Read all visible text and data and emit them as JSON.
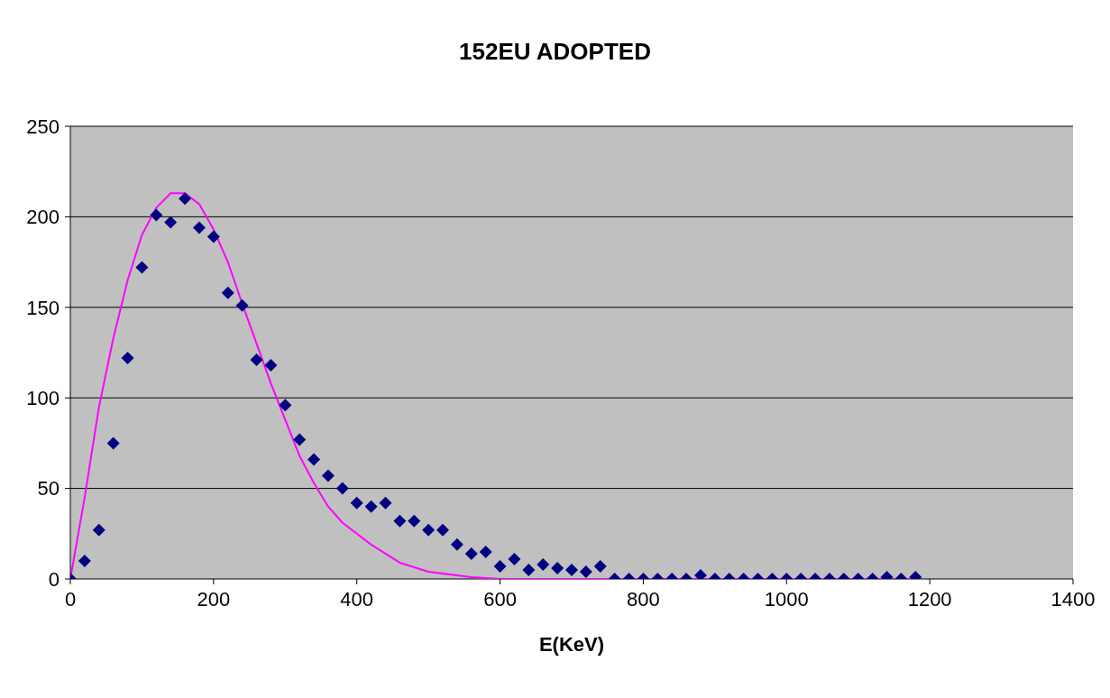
{
  "chart_data": {
    "type": "scatter",
    "title": "152EU ADOPTED",
    "xlabel": "E(KeV)",
    "xlim": [
      0,
      1400
    ],
    "xticks": [
      0,
      200,
      400,
      600,
      800,
      1000,
      1200,
      1400
    ],
    "ylim": [
      0,
      250
    ],
    "yticks": [
      0,
      50,
      100,
      150,
      200,
      250
    ],
    "grid": "y",
    "legend": false,
    "series": [
      {
        "marker": "diamond",
        "color": "#000080",
        "x": [
          0,
          20,
          40,
          60,
          80,
          100,
          120,
          140,
          160,
          180,
          200,
          220,
          240,
          260,
          280,
          300,
          320,
          340,
          360,
          380,
          400,
          420,
          440,
          460,
          480,
          500,
          520,
          540,
          560,
          580,
          600,
          620,
          640,
          660,
          680,
          700,
          720,
          740,
          760,
          780,
          800,
          820,
          840,
          860,
          880,
          900,
          920,
          940,
          960,
          980,
          1000,
          1020,
          1040,
          1060,
          1080,
          1100,
          1120,
          1140,
          1160,
          1180
        ],
        "values": [
          0,
          10,
          27,
          75,
          122,
          172,
          201,
          197,
          210,
          194,
          189,
          158,
          151,
          121,
          118,
          96,
          77,
          66,
          57,
          50,
          42,
          40,
          42,
          32,
          32,
          27,
          27,
          19,
          14,
          15,
          7,
          11,
          5,
          8,
          6,
          5,
          4,
          7,
          0,
          0,
          0,
          0,
          0,
          0,
          2,
          0,
          0,
          0,
          0,
          0,
          0,
          0,
          0,
          0,
          0,
          0,
          0,
          1,
          0,
          1
        ]
      },
      {
        "type": "line",
        "marker": "none",
        "color": "#ff00ff",
        "x": [
          0,
          20,
          40,
          60,
          80,
          100,
          120,
          140,
          160,
          180,
          200,
          220,
          240,
          260,
          280,
          300,
          320,
          340,
          360,
          380,
          400,
          420,
          460,
          500,
          560,
          600,
          700,
          800,
          900,
          1000,
          1100,
          1180
        ],
        "values": [
          0,
          45,
          95,
          133,
          165,
          190,
          205,
          213,
          213,
          207,
          193,
          175,
          152,
          130,
          108,
          88,
          68,
          53,
          40,
          31,
          25,
          19,
          9,
          4,
          1,
          0,
          0,
          0,
          0,
          0,
          0,
          0
        ]
      }
    ]
  }
}
